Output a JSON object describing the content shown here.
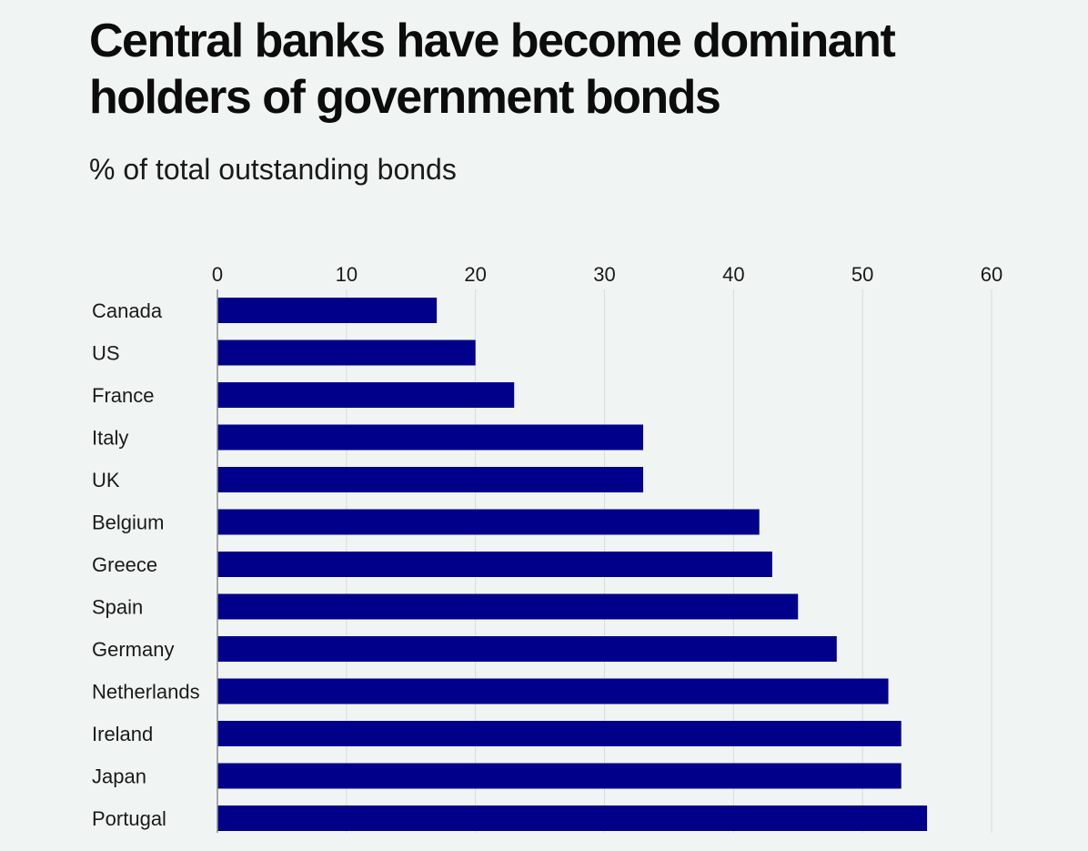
{
  "chart_data": {
    "type": "bar",
    "orientation": "horizontal",
    "title": "Central banks have become dominant holders of government bonds",
    "subtitle": "% of total outstanding bonds",
    "categories": [
      "Canada",
      "US",
      "France",
      "Italy",
      "UK",
      "Belgium",
      "Greece",
      "Spain",
      "Germany",
      "Netherlands",
      "Ireland",
      "Japan",
      "Portugal"
    ],
    "values": [
      17,
      20,
      23,
      33,
      33,
      42,
      43,
      45,
      48,
      52,
      53,
      53,
      55
    ],
    "xlim": [
      0,
      60
    ],
    "xticks": [
      0,
      10,
      20,
      30,
      40,
      50,
      60
    ],
    "xaxis_position": "top",
    "grid": true,
    "bar_color": "#00008b",
    "grid_color": "#d7dcdc"
  }
}
